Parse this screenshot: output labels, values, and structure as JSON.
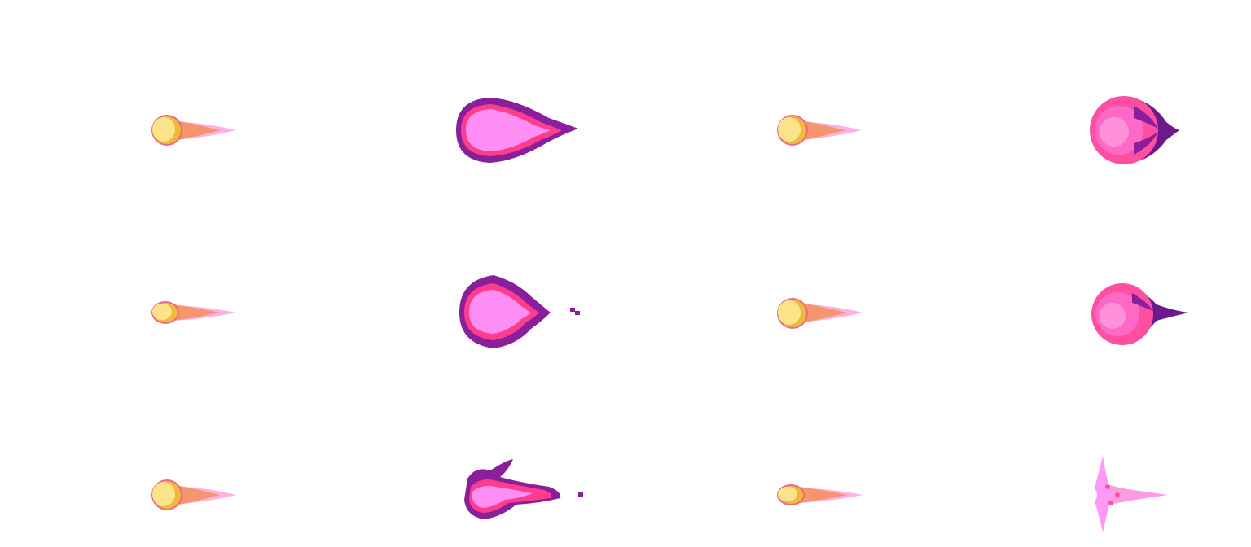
{
  "sprite_sheet": {
    "rows": 3,
    "columns": 4,
    "palette": {
      "yellow_core": "#fbe38a",
      "gold": "#f2b83c",
      "orange": "#f08a3c",
      "hot_pink": "#ff3d8d",
      "pink_glow": "#ff8ef5",
      "magenta": "#ff4fa0",
      "purple": "#8a1f9c",
      "deep_purple": "#6b1a8a",
      "light_pink": "#ff9be0"
    },
    "frames": [
      {
        "row": 0,
        "col": 0,
        "sprite": "small-yellow-fireball-icon"
      },
      {
        "row": 0,
        "col": 1,
        "sprite": "large-pink-fireball-icon"
      },
      {
        "row": 0,
        "col": 2,
        "sprite": "small-yellow-fireball-icon"
      },
      {
        "row": 0,
        "col": 3,
        "sprite": "pink-energy-orb-icon"
      },
      {
        "row": 1,
        "col": 0,
        "sprite": "small-yellow-fireball-icon"
      },
      {
        "row": 1,
        "col": 1,
        "sprite": "large-pink-fireball-icon"
      },
      {
        "row": 1,
        "col": 2,
        "sprite": "small-yellow-fireball-icon"
      },
      {
        "row": 1,
        "col": 3,
        "sprite": "pink-energy-orb-icon"
      },
      {
        "row": 2,
        "col": 0,
        "sprite": "small-yellow-fireball-icon"
      },
      {
        "row": 2,
        "col": 1,
        "sprite": "dissipating-pink-fireball-icon"
      },
      {
        "row": 2,
        "col": 2,
        "sprite": "small-yellow-fireball-icon"
      },
      {
        "row": 2,
        "col": 3,
        "sprite": "fading-pink-burst-icon"
      }
    ]
  }
}
